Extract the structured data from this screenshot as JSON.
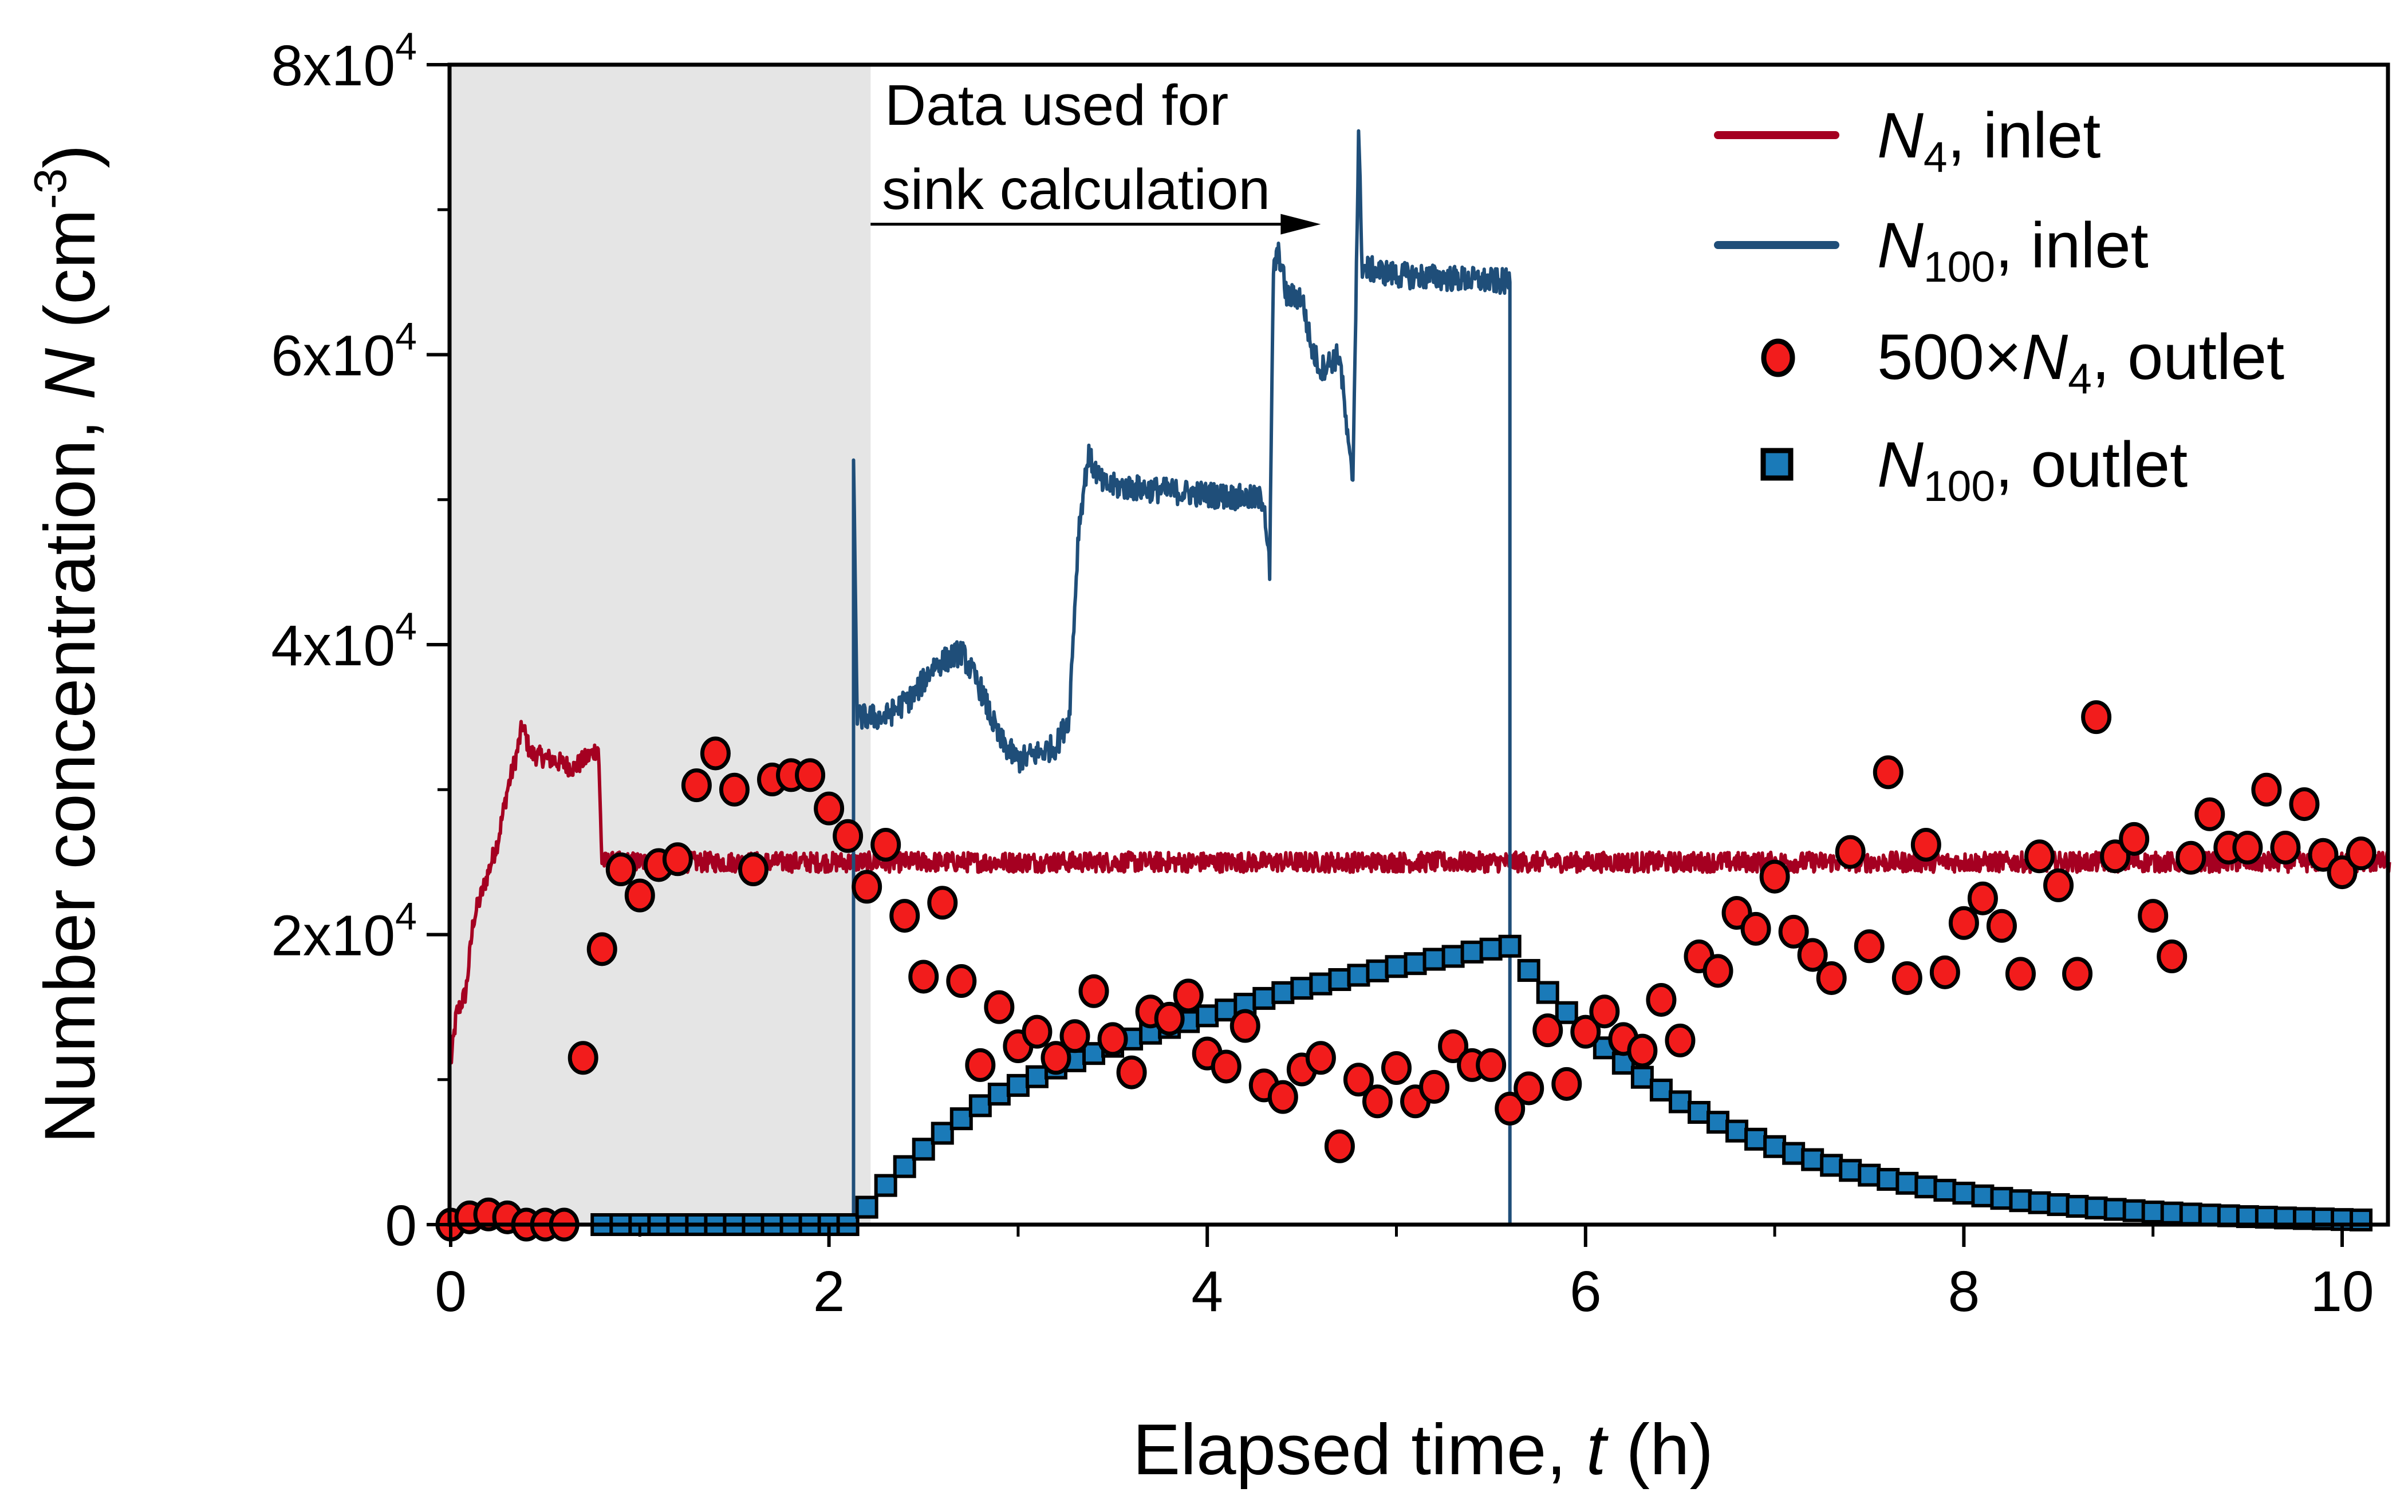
{
  "chart_data": {
    "type": "line",
    "xlabel": "Elapsed time, t (h)",
    "xlabel_parts": {
      "pre": "Elapsed time, ",
      "var": "t",
      "post": " (h)"
    },
    "ylabel_parts": {
      "pre": "Number concentration, ",
      "var": "N",
      "post": " (cm",
      "sup": "-3",
      "close": ")"
    },
    "xlim": [
      0,
      10.25
    ],
    "ylim": [
      0,
      80000
    ],
    "x_ticks": [
      0,
      2,
      4,
      6,
      8,
      10
    ],
    "x_tick_labels": [
      "0",
      "2",
      "4",
      "6",
      "8",
      "10"
    ],
    "y_ticks": [
      0,
      20000,
      40000,
      60000,
      80000
    ],
    "y_tick_labels": [
      {
        "base": "0",
        "exp": ""
      },
      {
        "base": "2x10",
        "exp": "4"
      },
      {
        "base": "4x10",
        "exp": "4"
      },
      {
        "base": "6x10",
        "exp": "4"
      },
      {
        "base": "8x10",
        "exp": "4"
      }
    ],
    "shaded_region": {
      "x": [
        0,
        2.22
      ],
      "color": "#e5e5e5"
    },
    "annotation": {
      "lines": [
        "Data used for",
        "sink calculation"
      ],
      "arrow_from_x": 2.22,
      "arrow_to_x": 4.6,
      "arrow_y": 69000
    },
    "legend_position": "top-right",
    "series": [
      {
        "name": "N4, inlet",
        "legend": {
          "var": "N",
          "sub": "4",
          "post": ", inlet"
        },
        "type": "line",
        "color": "#a50021",
        "noise": 700,
        "points": [
          [
            0,
            11000
          ],
          [
            0.03,
            14500
          ],
          [
            0.08,
            16000
          ],
          [
            0.12,
            21000
          ],
          [
            0.18,
            23500
          ],
          [
            0.25,
            26500
          ],
          [
            0.3,
            30000
          ],
          [
            0.35,
            32500
          ],
          [
            0.38,
            34500
          ],
          [
            0.42,
            32500
          ],
          [
            0.55,
            32000
          ],
          [
            0.65,
            31500
          ],
          [
            0.75,
            32500
          ],
          [
            0.78,
            33000
          ],
          [
            0.8,
            25000
          ],
          [
            10.25,
            25000
          ]
        ]
      },
      {
        "name": "N100, inlet",
        "legend": {
          "var": "N",
          "sub": "100",
          "post": ", inlet"
        },
        "type": "line",
        "color": "#1f4e79",
        "noise": 900,
        "points": [
          [
            2.13,
            0
          ],
          [
            2.13,
            52000
          ],
          [
            2.15,
            35000
          ],
          [
            2.3,
            35000
          ],
          [
            2.45,
            36500
          ],
          [
            2.55,
            38500
          ],
          [
            2.7,
            39500
          ],
          [
            2.8,
            37000
          ],
          [
            2.9,
            33500
          ],
          [
            3.0,
            32000
          ],
          [
            3.2,
            33000
          ],
          [
            3.27,
            35000
          ],
          [
            3.32,
            48000
          ],
          [
            3.37,
            53000
          ],
          [
            3.45,
            51000
          ],
          [
            4.3,
            50000
          ],
          [
            4.33,
            45000
          ],
          [
            4.35,
            66000
          ],
          [
            4.38,
            67000
          ],
          [
            4.42,
            64000
          ],
          [
            4.5,
            64000
          ],
          [
            4.55,
            60500
          ],
          [
            4.6,
            59000
          ],
          [
            4.7,
            60000
          ],
          [
            4.75,
            53000
          ],
          [
            4.77,
            51500
          ],
          [
            4.8,
            75000
          ],
          [
            4.82,
            66000
          ],
          [
            5.0,
            65500
          ],
          [
            5.6,
            65000
          ],
          [
            5.6,
            0
          ]
        ]
      },
      {
        "name": "500×N4, outlet",
        "legend": {
          "pre": "500×",
          "var": "N",
          "sub": "4",
          "post": ", outlet"
        },
        "type": "scatter",
        "marker": "circle",
        "color": "#f21c1c",
        "x_start": 0,
        "x_step": 0.1,
        "values": [
          0,
          500,
          700,
          500,
          0,
          0,
          0,
          11500,
          19000,
          24500,
          22700,
          24800,
          25200,
          30300,
          32500,
          30000,
          24500,
          30700,
          31000,
          31000,
          28700,
          26800,
          23300,
          26200,
          21300,
          17100,
          22200,
          16800,
          11000,
          15000,
          12300,
          13300,
          11500,
          13000,
          16100,
          12800,
          10500,
          14700,
          14200,
          15800,
          11800,
          10900,
          13700,
          9600,
          8800,
          10700,
          11500,
          5400,
          10000,
          8500,
          10800,
          8500,
          9500,
          12300,
          11000,
          11000,
          8000,
          9400,
          13400,
          9700,
          13300,
          14700,
          12800,
          12000,
          15500,
          12700,
          18500,
          17500,
          21500,
          20400,
          24000,
          20200,
          18600,
          17000,
          25700,
          19200,
          31200,
          17000,
          26200,
          17400,
          20800,
          22500,
          20600,
          17300,
          25400,
          23400,
          17300,
          35000,
          25400,
          26600,
          21300,
          18500,
          25300,
          28300,
          26000,
          26000,
          30000,
          26000,
          29000,
          25500,
          24300,
          25600
        ]
      },
      {
        "name": "N100, outlet",
        "legend": {
          "var": "N",
          "sub": "100",
          "post": ", outlet"
        },
        "type": "scatter",
        "marker": "square",
        "color": "#1a7ab8",
        "x_start": 0.8,
        "x_step": 0.1,
        "values": [
          0,
          0,
          0,
          0,
          0,
          0,
          0,
          0,
          0,
          0,
          0,
          0,
          0,
          0,
          1200,
          2700,
          4000,
          5200,
          6300,
          7300,
          8200,
          9000,
          9600,
          10200,
          10800,
          11300,
          11800,
          12300,
          12800,
          13200,
          13600,
          14000,
          14400,
          14800,
          15200,
          15600,
          16000,
          16300,
          16600,
          16900,
          17200,
          17500,
          17800,
          18000,
          18300,
          18500,
          18800,
          19000,
          19200,
          17530,
          16010,
          14620,
          13350,
          12190,
          11130,
          10160,
          9280,
          8470,
          7740,
          7060,
          6450,
          5890,
          5380,
          4910,
          4480,
          4090,
          3740,
          3410,
          3120,
          2850,
          2600,
          2370,
          2170,
          1980,
          1810,
          1650,
          1510,
          1380,
          1260,
          1150,
          1050,
          960,
          870,
          800,
          730,
          660,
          610,
          550,
          510,
          460,
          420,
          390,
          350,
          320
        ]
      }
    ]
  }
}
